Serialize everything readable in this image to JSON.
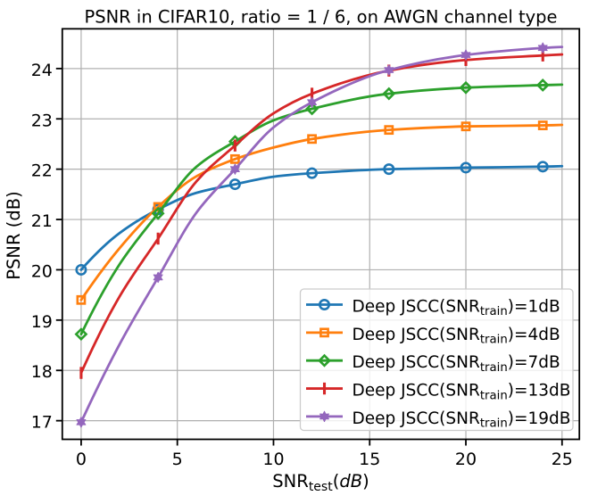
{
  "figure": {
    "background": "#ffffff"
  },
  "chart_data": {
    "type": "line",
    "title": "PSNR in CIFAR10, ratio = 1 / 6, on AWGN channel type",
    "xlabel": "SNR_test(dB)",
    "xlabel_parts": [
      {
        "t": "SNR"
      },
      {
        "t": "test",
        "sub": true
      },
      {
        "t": "("
      },
      {
        "t": "dB",
        "italic": true
      },
      {
        "t": ")"
      }
    ],
    "ylabel": "PSNR (dB)",
    "x": [
      0,
      4,
      8,
      12,
      16,
      20,
      24
    ],
    "line_end_x": 25,
    "xticks": [
      "0",
      "5",
      "10",
      "15",
      "20",
      "25"
    ],
    "xtick_values": [
      0,
      5,
      10,
      15,
      20,
      25
    ],
    "yticks": [
      "17",
      "18",
      "19",
      "20",
      "21",
      "22",
      "23",
      "24"
    ],
    "ytick_values": [
      17,
      18,
      19,
      20,
      21,
      22,
      23,
      24
    ],
    "xlim": [
      -0.98,
      25.9
    ],
    "ylim": [
      16.63,
      24.79
    ],
    "grid": true,
    "grid_color": "#b0b0b0",
    "spine_color": "#000000",
    "legend_position": "lower right",
    "series": [
      {
        "name": "Deep JSCC(SNR_train)=1dB",
        "label_parts": [
          {
            "t": "Deep JSCC(SNR"
          },
          {
            "t": "train",
            "sub": true
          },
          {
            "t": ")=1dB"
          }
        ],
        "color": "#1f77b4",
        "marker": "circle",
        "values": [
          20.0,
          21.2,
          21.7,
          21.92,
          22.0,
          22.03,
          22.05
        ],
        "curve_shape_points": {
          "x": [
            2,
            6,
            10
          ],
          "values": [
            20.73,
            21.53,
            21.85
          ]
        },
        "line_end_value": 22.06
      },
      {
        "name": "Deep JSCC(SNR_train)=4dB",
        "label_parts": [
          {
            "t": "Deep JSCC(SNR"
          },
          {
            "t": "train",
            "sub": true
          },
          {
            "t": ")=4dB"
          }
        ],
        "color": "#ff7f0e",
        "marker": "square",
        "values": [
          19.4,
          21.25,
          22.2,
          22.6,
          22.78,
          22.85,
          22.87
        ],
        "curve_shape_points": {
          "x": [
            2,
            6,
            10
          ],
          "values": [
            20.43,
            21.86,
            22.43
          ]
        },
        "line_end_value": 22.88
      },
      {
        "name": "Deep JSCC(SNR_train)=7dB",
        "label_parts": [
          {
            "t": "Deep JSCC(SNR"
          },
          {
            "t": "train",
            "sub": true
          },
          {
            "t": ")=7dB"
          }
        ],
        "color": "#2ca02c",
        "marker": "diamond",
        "values": [
          18.72,
          21.12,
          22.55,
          23.2,
          23.5,
          23.62,
          23.67
        ],
        "curve_shape_points": {
          "x": [
            2,
            6,
            10
          ],
          "values": [
            20.11,
            22.05,
            22.97
          ]
        },
        "line_end_value": 23.68
      },
      {
        "name": "Deep JSCC(SNR_train)=13dB",
        "label_parts": [
          {
            "t": "Deep JSCC(SNR"
          },
          {
            "t": "train",
            "sub": true
          },
          {
            "t": ")=13dB"
          }
        ],
        "color": "#d62728",
        "marker": "vbar",
        "values": [
          17.95,
          20.62,
          22.47,
          23.5,
          23.96,
          24.17,
          24.26
        ],
        "curve_shape_points": {
          "x": [
            2,
            6,
            10
          ],
          "values": [
            19.47,
            21.76,
            23.11
          ]
        },
        "line_end_value": 24.28
      },
      {
        "name": "Deep JSCC(SNR_train)=19dB",
        "label_parts": [
          {
            "t": "Deep JSCC(SNR"
          },
          {
            "t": "train",
            "sub": true
          },
          {
            "t": ")=19dB"
          }
        ],
        "color": "#9467bd",
        "marker": "star",
        "values": [
          16.97,
          19.85,
          22.0,
          23.33,
          23.97,
          24.27,
          24.41
        ],
        "curve_shape_points": {
          "x": [
            2,
            6,
            10
          ],
          "values": [
            18.52,
            21.14,
            22.83
          ]
        },
        "line_end_value": 24.43
      }
    ]
  }
}
